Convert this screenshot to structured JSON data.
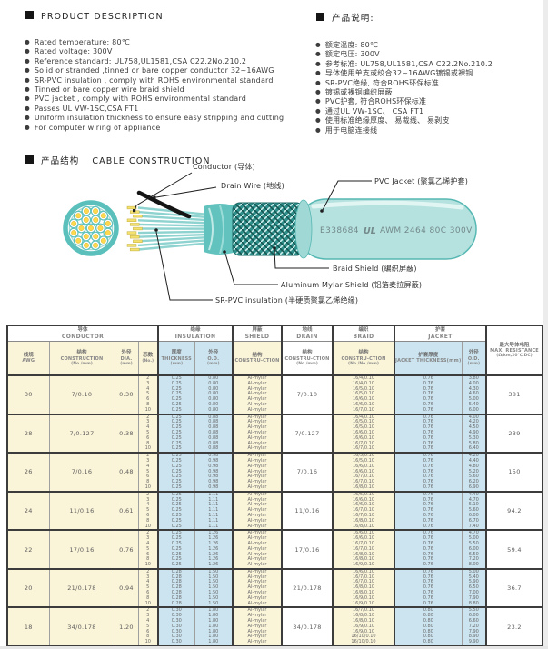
{
  "product_description": {
    "title": "PRODUCT DESCRIPTION",
    "items": [
      "Rated temperature: 80℃",
      "Rated voltage: 300V",
      "Reference standard: UL758,UL1581,CSA C22.2No.210.2",
      "Solid or stranded ,tinned or bare copper conductor 32~16AWG",
      "SR-PVC insulation , comply with ROHS environmental standard",
      "Tinned or bare copper wire braid shield",
      "PVC jacket , comply with ROHS environmental standard",
      "Passes UL VW-1SC,CSA FT1",
      "Uniform insulation thickness to ensure easy stripping and cutting",
      "For computer wiring of appliance"
    ]
  },
  "product_notes": {
    "title": "产品说明:",
    "items": [
      "额定温度: 80℃",
      "额定电压: 300V",
      "参考标准: UL758,UL1581,CSA C22.2No.210.2",
      "导体使用单支或绞合32~16AWG镀锡或裸铜",
      "SR-PVC绝缘, 符合ROHS环保标准",
      "镀锡或裸铜编织屏蔽",
      "PVC护套, 符合ROHS环保标准",
      "通过UL VW-1SC、 CSA FT1",
      "使用标准绝缘厚度、 易裁线、 易剥皮",
      "用于电脑连接线"
    ]
  },
  "construction": {
    "title_cn": "产品结构",
    "title_en": "CABLE CONSTRUCTION",
    "print_cert": "E338684",
    "print_ul": "UL",
    "print_spec": "AWM 2464 80C 300V",
    "labels": {
      "conductor": "Conductor (导体)",
      "drain": "Drain Wire (地线)",
      "jacket": "PVC Jacket (聚氯乙烯护套)",
      "braid": "Braid Shield (编织屏蔽)",
      "mylar": "Aluminum Mylar Shield (铝箔麦拉屏蔽)",
      "insulation": "SR-PVC insulation (半硬质聚氯乙烯绝缘)"
    },
    "colors": {
      "teal": "#5bc0bb",
      "teal_dark": "#2e8e8a",
      "teal_light": "#b5e2df",
      "conductor_yellow": "#f3e06d",
      "drain_black": "#141414"
    }
  },
  "table": {
    "groups": [
      {
        "cn": "导体",
        "en": "CONDUCTOR",
        "span": 4
      },
      {
        "cn": "绝缘",
        "en": "INSULATION",
        "span": 2
      },
      {
        "cn": "屏蔽",
        "en": "SHIELD",
        "span": 1
      },
      {
        "cn": "地线",
        "en": "DRAIN",
        "span": 1
      },
      {
        "cn": "编织",
        "en": "BRAID",
        "span": 1
      },
      {
        "cn": "护套",
        "en": "JACKET",
        "span": 2
      }
    ],
    "resistance_header": {
      "cn": "最大导体电阻",
      "en": "MAX. RESISTANCE",
      "sub": "(Ω/km,20℃,DC)"
    },
    "columns": [
      {
        "cn": "线规",
        "en": "AWG",
        "sub": ""
      },
      {
        "cn": "结构",
        "en": "CONSTRUCTION",
        "sub": "(No./mm)"
      },
      {
        "cn": "外径",
        "en": "DIA.",
        "sub": "(mm)"
      },
      {
        "cn": "芯数",
        "en": "",
        "sub": "(No.)"
      },
      {
        "cn": "厚度",
        "en": "THICKNESS",
        "sub": "(mm)"
      },
      {
        "cn": "外径",
        "en": "O.D.",
        "sub": "(mm)"
      },
      {
        "cn": "结构",
        "en": "CONSTRU-CTION",
        "sub": ""
      },
      {
        "cn": "结构",
        "en": "CONSTRU-CTION",
        "sub": "(No./mm)"
      },
      {
        "cn": "结构",
        "en": "CONSTRU-CTION",
        "sub": "(No./No./mm)"
      },
      {
        "cn": "护套厚度",
        "en": "JACKET THICKNESS(mm)",
        "sub": ""
      },
      {
        "cn": "外径",
        "en": "O.D.",
        "sub": "(mm)"
      }
    ],
    "rows": [
      {
        "awg": "30",
        "construction": "7/0.10",
        "dia": "0.30",
        "cores": [
          "2",
          "3",
          "4",
          "5",
          "6",
          "8",
          "10"
        ],
        "ins_thickness": [
          "0.25",
          "0.25",
          "0.25",
          "0.25",
          "0.25",
          "0.25",
          "0.25"
        ],
        "ins_od": [
          "0.80",
          "0.80",
          "0.80",
          "0.80",
          "0.80",
          "0.80",
          "0.80"
        ],
        "shield": [
          "Al-mylar",
          "Al-mylar",
          "Al-mylar",
          "Al-mylar",
          "Al-mylar",
          "Al-mylar",
          "Al-mylar"
        ],
        "drain": "7/0.10",
        "braid": [
          "16/4/0.10",
          "16/4/0.10",
          "16/5/0.10",
          "16/5/0.10",
          "16/6/0.10",
          "16/6/0.10",
          "16/7/0.10"
        ],
        "jacket_thickness": [
          "0.76",
          "0.76",
          "0.76",
          "0.76",
          "0.76",
          "0.76",
          "0.76"
        ],
        "jacket_od": [
          "3.80",
          "4.00",
          "4.30",
          "4.60",
          "5.00",
          "5.40",
          "6.00"
        ],
        "resistance": "381"
      },
      {
        "awg": "28",
        "construction": "7/0.127",
        "dia": "0.38",
        "cores": [
          "2",
          "3",
          "4",
          "5",
          "6",
          "8",
          "10"
        ],
        "ins_thickness": [
          "0.25",
          "0.25",
          "0.25",
          "0.25",
          "0.25",
          "0.25",
          "0.25"
        ],
        "ins_od": [
          "0.88",
          "0.88",
          "0.88",
          "0.88",
          "0.88",
          "0.88",
          "0.88"
        ],
        "shield": [
          "Al-mylar",
          "Al-mylar",
          "Al-mylar",
          "Al-mylar",
          "Al-mylar",
          "Al-mylar",
          "Al-mylar"
        ],
        "drain": "7/0.127",
        "braid": [
          "16/4/0.10",
          "16/5/0.10",
          "16/5/0.10",
          "16/6/0.10",
          "16/6/0.10",
          "16/7/0.10",
          "16/7/0.10"
        ],
        "jacket_thickness": [
          "0.76",
          "0.76",
          "0.76",
          "0.76",
          "0.76",
          "0.76",
          "0.76"
        ],
        "jacket_od": [
          "4.00",
          "4.20",
          "4.50",
          "4.90",
          "5.30",
          "5.80",
          "6.40"
        ],
        "resistance": "239"
      },
      {
        "awg": "26",
        "construction": "7/0.16",
        "dia": "0.48",
        "cores": [
          "2",
          "3",
          "4",
          "5",
          "6",
          "8",
          "10"
        ],
        "ins_thickness": [
          "0.25",
          "0.25",
          "0.25",
          "0.25",
          "0.25",
          "0.25",
          "0.25"
        ],
        "ins_od": [
          "0.98",
          "0.98",
          "0.98",
          "0.98",
          "0.98",
          "0.98",
          "0.98"
        ],
        "shield": [
          "Al-mylar",
          "Al-mylar",
          "Al-mylar",
          "Al-mylar",
          "Al-mylar",
          "Al-mylar",
          "Al-mylar"
        ],
        "drain": "7/0.16",
        "braid": [
          "16/5/0.10",
          "16/5/0.10",
          "16/6/0.10",
          "16/6/0.10",
          "16/7/0.10",
          "16/7/0.10",
          "16/8/0.10"
        ],
        "jacket_thickness": [
          "0.76",
          "0.76",
          "0.76",
          "0.76",
          "0.76",
          "0.76",
          "0.76"
        ],
        "jacket_od": [
          "4.20",
          "4.40",
          "4.80",
          "5.20",
          "5.60",
          "6.20",
          "6.90"
        ],
        "resistance": "150"
      },
      {
        "awg": "24",
        "construction": "11/0.16",
        "dia": "0.61",
        "cores": [
          "2",
          "3",
          "4",
          "5",
          "6",
          "8",
          "10"
        ],
        "ins_thickness": [
          "0.25",
          "0.25",
          "0.25",
          "0.25",
          "0.25",
          "0.25",
          "0.25"
        ],
        "ins_od": [
          "1.11",
          "1.11",
          "1.11",
          "1.11",
          "1.11",
          "1.11",
          "1.11"
        ],
        "shield": [
          "Al-mylar",
          "Al-mylar",
          "Al-mylar",
          "Al-mylar",
          "Al-mylar",
          "Al-mylar",
          "Al-mylar"
        ],
        "drain": "11/0.16",
        "braid": [
          "16/5/0.10",
          "16/6/0.10",
          "16/6/0.10",
          "16/7/0.10",
          "16/7/0.10",
          "16/8/0.10",
          "16/8/0.10"
        ],
        "jacket_thickness": [
          "0.76",
          "0.76",
          "0.76",
          "0.76",
          "0.76",
          "0.76",
          "0.76"
        ],
        "jacket_od": [
          "4.40",
          "4.70",
          "5.10",
          "5.60",
          "6.00",
          "6.70",
          "7.40"
        ],
        "resistance": "94.2"
      },
      {
        "awg": "22",
        "construction": "17/0.16",
        "dia": "0.76",
        "cores": [
          "2",
          "3",
          "4",
          "5",
          "6",
          "8",
          "10"
        ],
        "ins_thickness": [
          "0.25",
          "0.25",
          "0.25",
          "0.25",
          "0.25",
          "0.25",
          "0.25"
        ],
        "ins_od": [
          "1.26",
          "1.26",
          "1.26",
          "1.26",
          "1.26",
          "1.26",
          "1.26"
        ],
        "shield": [
          "Al-mylar",
          "Al-mylar",
          "Al-mylar",
          "Al-mylar",
          "Al-mylar",
          "Al-mylar",
          "Al-mylar"
        ],
        "drain": "17/0.16",
        "braid": [
          "16/6/0.10",
          "16/6/0.10",
          "16/7/0.10",
          "16/7/0.10",
          "16/8/0.10",
          "16/8/0.10",
          "16/9/0.10"
        ],
        "jacket_thickness": [
          "0.76",
          "0.76",
          "0.76",
          "0.76",
          "0.76",
          "0.76",
          "0.76"
        ],
        "jacket_od": [
          "4.70",
          "5.00",
          "5.50",
          "6.00",
          "6.50",
          "7.20",
          "8.00"
        ],
        "resistance": "59.4"
      },
      {
        "awg": "20",
        "construction": "21/0.178",
        "dia": "0.94",
        "cores": [
          "2",
          "3",
          "4",
          "5",
          "6",
          "8",
          "10"
        ],
        "ins_thickness": [
          "0.28",
          "0.28",
          "0.28",
          "0.28",
          "0.28",
          "0.28",
          "0.28"
        ],
        "ins_od": [
          "1.50",
          "1.50",
          "1.50",
          "1.50",
          "1.50",
          "1.50",
          "1.50"
        ],
        "shield": [
          "Al-mylar",
          "Al-mylar",
          "Al-mylar",
          "Al-mylar",
          "Al-mylar",
          "Al-mylar",
          "Al-mylar"
        ],
        "drain": "21/0.178",
        "braid": [
          "16/6/0.10",
          "16/7/0.10",
          "16/7/0.10",
          "16/8/0.10",
          "16/8/0.10",
          "16/9/0.10",
          "16/9/0.10"
        ],
        "jacket_thickness": [
          "0.76",
          "0.76",
          "0.76",
          "0.76",
          "0.76",
          "0.76",
          "0.76"
        ],
        "jacket_od": [
          "5.00",
          "5.40",
          "5.90",
          "6.50",
          "7.00",
          "7.90",
          "8.80"
        ],
        "resistance": "36.7"
      },
      {
        "awg": "18",
        "construction": "34/0.178",
        "dia": "1.20",
        "cores": [
          "2",
          "3",
          "4",
          "5",
          "6",
          "8",
          "10"
        ],
        "ins_thickness": [
          "0.30",
          "0.30",
          "0.30",
          "0.30",
          "0.30",
          "0.30",
          "0.30"
        ],
        "ins_od": [
          "1.80",
          "1.80",
          "1.80",
          "1.80",
          "1.80",
          "1.80",
          "1.80"
        ],
        "shield": [
          "Al-mylar",
          "Al-mylar",
          "Al-mylar",
          "Al-mylar",
          "Al-mylar",
          "Al-mylar",
          "Al-mylar"
        ],
        "drain": "34/0.178",
        "braid": [
          "16/7/0.10",
          "16/8/0.10",
          "16/8/0.10",
          "16/9/0.10",
          "16/9/0.10",
          "16/10/0.10",
          "16/10/0.10"
        ],
        "jacket_thickness": [
          "0.80",
          "0.80",
          "0.80",
          "0.80",
          "0.80",
          "0.80",
          "0.80"
        ],
        "jacket_od": [
          "5.50",
          "6.00",
          "6.60",
          "7.20",
          "7.90",
          "8.90",
          "9.90"
        ],
        "resistance": "23.2"
      }
    ]
  }
}
